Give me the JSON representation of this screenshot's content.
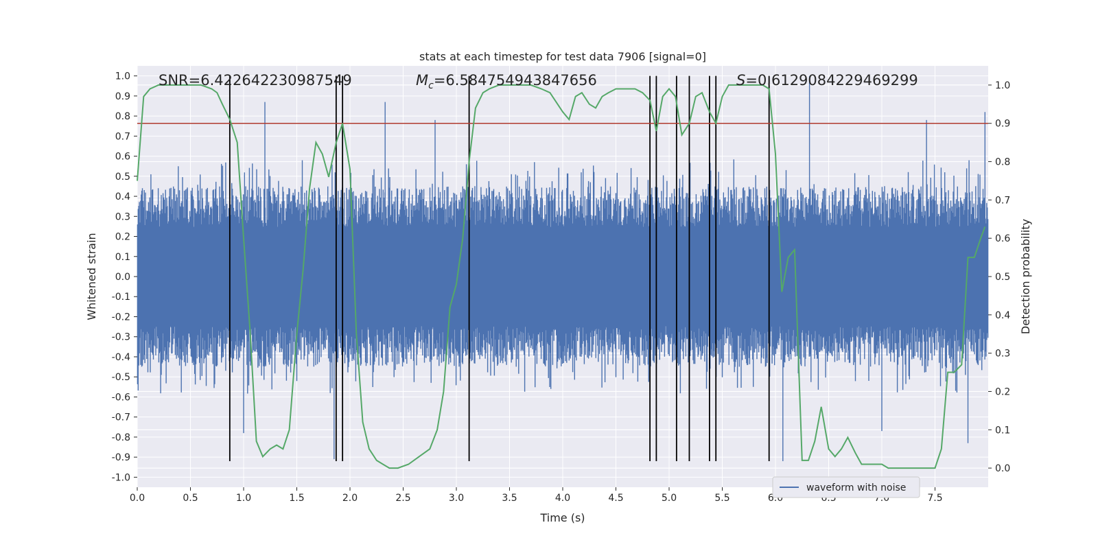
{
  "chart_data": {
    "type": "line",
    "title": "stats at each timestep for test data 7906 [signal=0]",
    "xlabel": "Time (s)",
    "ylabel_left": "Whitened strain",
    "ylabel_right": "Detection probability",
    "xlim": [
      0.0,
      8.0
    ],
    "ylim_left": [
      -1.05,
      1.05
    ],
    "ylim_right": [
      -0.05,
      1.05
    ],
    "x_ticks": [
      0.0,
      0.5,
      1.0,
      1.5,
      2.0,
      2.5,
      3.0,
      3.5,
      4.0,
      4.5,
      5.0,
      5.5,
      6.0,
      6.5,
      7.0,
      7.5
    ],
    "x_tick_labels": [
      "0.0",
      "0.5",
      "1.0",
      "1.5",
      "2.0",
      "2.5",
      "3.0",
      "3.5",
      "4.0",
      "4.5",
      "5.0",
      "5.5",
      "6.0",
      "6.5",
      "7.0",
      "7.5"
    ],
    "y_ticks_left": [
      1.0,
      0.9,
      0.8,
      0.7,
      0.6,
      0.5,
      0.4,
      0.3,
      0.2,
      0.1,
      0.0,
      -0.1,
      -0.2,
      -0.3,
      -0.4,
      -0.5,
      -0.6,
      -0.7,
      -0.8,
      -0.9,
      -1.0
    ],
    "y_tick_labels_left": [
      "1.0",
      "0.9",
      "0.8",
      "0.7",
      "0.6",
      "0.5",
      "0.4",
      "0.3",
      "0.2",
      "0.1",
      "0.0",
      "-0.1",
      "-0.2",
      "-0.3",
      "-0.4",
      "-0.5",
      "-0.6",
      "-0.7",
      "-0.8",
      "-0.9",
      "-1.0"
    ],
    "y_ticks_right": [
      1.0,
      0.9,
      0.8,
      0.7,
      0.6,
      0.5,
      0.4,
      0.3,
      0.2,
      0.1,
      0.0
    ],
    "y_tick_labels_right": [
      "1.0",
      "0.9",
      "0.8",
      "0.7",
      "0.6",
      "0.5",
      "0.4",
      "0.3",
      "0.2",
      "0.1",
      "0.0"
    ],
    "annotations": {
      "snr": "SNR=6.422642230987549",
      "mc_symbol": "M",
      "mc_sub": "c",
      "mc_value": "=6.584754943847656",
      "s_symbol": "S",
      "s_value": "=0.6129084229469299"
    },
    "threshold": {
      "value": 0.9,
      "axis": "right",
      "color": "#b03a2e"
    },
    "vertical_markers": [
      0.87,
      1.87,
      1.93,
      3.12,
      4.82,
      4.88,
      5.07,
      5.19,
      5.38,
      5.44,
      5.94
    ],
    "vertical_marker_range": [
      -0.92,
      1.0
    ],
    "series": [
      {
        "name": "waveform with noise",
        "axis": "left",
        "color": "#4c72b0",
        "envelope_note_values": {
          "typical_amplitude": 0.45,
          "max_peak": 1.0,
          "min_peak": -0.92
        },
        "notable_peaks": [
          {
            "x": 1.2,
            "y": 0.87
          },
          {
            "x": 1.85,
            "y": -0.91
          },
          {
            "x": 2.33,
            "y": 0.87
          },
          {
            "x": 2.8,
            "y": 0.78
          },
          {
            "x": 6.32,
            "y": 1.0
          },
          {
            "x": 7.42,
            "y": 0.78
          },
          {
            "x": 7.81,
            "y": -0.83
          },
          {
            "x": 6.07,
            "y": -0.92
          },
          {
            "x": 7.0,
            "y": -0.77
          },
          {
            "x": 1.0,
            "y": -0.78
          },
          {
            "x": 7.97,
            "y": 0.82
          }
        ]
      },
      {
        "name": "",
        "axis": "right",
        "color": "#55a868",
        "x": [
          0.0,
          0.06,
          0.12,
          0.2,
          0.3,
          0.4,
          0.5,
          0.6,
          0.7,
          0.75,
          0.8,
          0.87,
          0.94,
          1.0,
          1.06,
          1.12,
          1.18,
          1.25,
          1.31,
          1.37,
          1.43,
          1.5,
          1.56,
          1.62,
          1.68,
          1.74,
          1.8,
          1.87,
          1.93,
          2.0,
          2.06,
          2.12,
          2.18,
          2.25,
          2.31,
          2.37,
          2.45,
          2.55,
          2.65,
          2.75,
          2.82,
          2.88,
          2.94,
          3.0,
          3.06,
          3.12,
          3.18,
          3.25,
          3.31,
          3.4,
          3.5,
          3.6,
          3.7,
          3.8,
          3.88,
          4.0,
          4.06,
          4.12,
          4.18,
          4.25,
          4.31,
          4.37,
          4.43,
          4.5,
          4.56,
          4.62,
          4.68,
          4.75,
          4.82,
          4.88,
          4.94,
          5.0,
          5.06,
          5.12,
          5.19,
          5.25,
          5.31,
          5.38,
          5.44,
          5.5,
          5.56,
          5.62,
          5.7,
          5.8,
          5.88,
          5.94,
          6.0,
          6.06,
          6.12,
          6.18,
          6.25,
          6.31,
          6.37,
          6.43,
          6.5,
          6.56,
          6.62,
          6.68,
          6.75,
          6.81,
          6.87,
          6.93,
          7.0,
          7.06,
          7.12,
          7.2,
          7.3,
          7.4,
          7.5,
          7.56,
          7.62,
          7.68,
          7.75,
          7.81,
          7.87,
          7.93,
          7.97
        ],
        "y": [
          0.75,
          0.97,
          0.99,
          1.0,
          1.0,
          1.0,
          1.0,
          1.0,
          0.99,
          0.98,
          0.95,
          0.91,
          0.85,
          0.6,
          0.36,
          0.07,
          0.03,
          0.05,
          0.06,
          0.05,
          0.1,
          0.35,
          0.52,
          0.73,
          0.85,
          0.82,
          0.76,
          0.85,
          0.9,
          0.78,
          0.35,
          0.12,
          0.05,
          0.02,
          0.01,
          0.0,
          0.0,
          0.01,
          0.03,
          0.05,
          0.1,
          0.2,
          0.42,
          0.48,
          0.6,
          0.8,
          0.94,
          0.98,
          0.99,
          1.0,
          1.0,
          1.0,
          1.0,
          0.99,
          0.98,
          0.93,
          0.91,
          0.97,
          0.98,
          0.95,
          0.94,
          0.97,
          0.98,
          0.99,
          0.99,
          0.99,
          0.99,
          0.98,
          0.96,
          0.88,
          0.97,
          0.99,
          0.97,
          0.87,
          0.9,
          0.97,
          0.98,
          0.93,
          0.9,
          0.97,
          1.0,
          1.0,
          1.0,
          1.0,
          1.0,
          0.99,
          0.82,
          0.46,
          0.55,
          0.57,
          0.02,
          0.02,
          0.07,
          0.16,
          0.05,
          0.03,
          0.05,
          0.08,
          0.04,
          0.01,
          0.01,
          0.01,
          0.01,
          0.0,
          0.0,
          0.0,
          0.0,
          0.0,
          0.0,
          0.05,
          0.25,
          0.25,
          0.27,
          0.55,
          0.55,
          0.6,
          0.63
        ]
      }
    ],
    "legend": {
      "entries": [
        "waveform with noise"
      ],
      "placement": "bottom-right"
    },
    "grid": true,
    "background": "#eaeaf2"
  }
}
